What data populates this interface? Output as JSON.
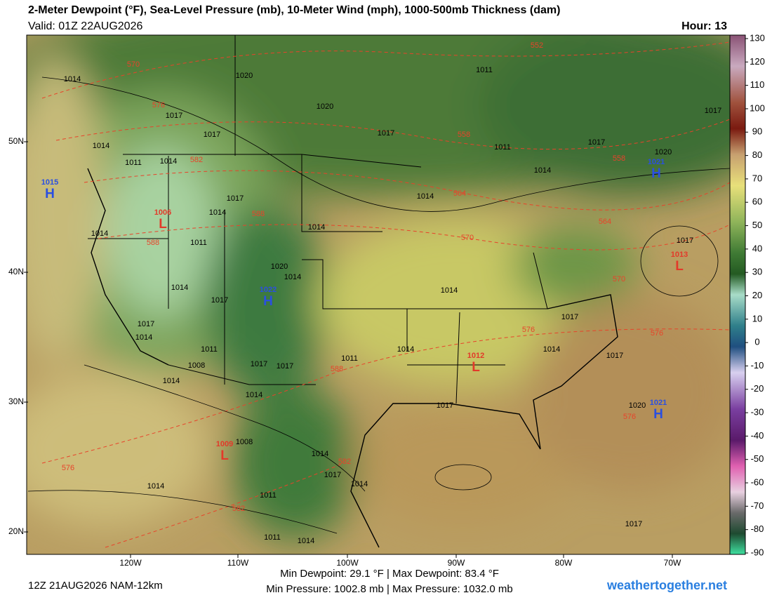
{
  "header": {
    "title": "2-Meter Dewpoint (°F), Sea-Level Pressure (mb), 10-Meter Wind (mph), 1000-500mb Thickness (dam)",
    "valid": "Valid: 01Z 22AUG2026",
    "hour": "Hour: 13"
  },
  "map": {
    "lat_labels": [
      "50N",
      "40N",
      "30N",
      "20N"
    ],
    "lon_labels": [
      "120W",
      "110W",
      "100W",
      "90W",
      "80W",
      "70W"
    ],
    "pressure_centers": [
      {
        "letter": "H",
        "value": 1015
      },
      {
        "letter": "H",
        "value": 1021
      },
      {
        "letter": "H",
        "value": 1022
      },
      {
        "letter": "L",
        "value": 1006
      },
      {
        "letter": "L",
        "value": 1013
      },
      {
        "letter": "L",
        "value": 1012
      },
      {
        "letter": "H",
        "value": 1021
      },
      {
        "letter": "L",
        "value": 1009
      }
    ],
    "isobar_labels": [
      1014,
      1017,
      1017,
      1014,
      1011,
      1014,
      1020,
      1020,
      1017,
      1011,
      1011,
      1014,
      1017,
      1017,
      1020,
      1014,
      1014,
      1017,
      1014,
      1011,
      1014,
      1020,
      1014,
      1014,
      1017,
      1017,
      1014,
      1011,
      1008,
      1014,
      1017,
      1017,
      1014,
      1011,
      1014,
      1014,
      1017,
      1014,
      1017,
      1017,
      1017,
      1020,
      1008,
      1014,
      1017,
      1014,
      1014,
      1011,
      1011,
      1014,
      1017
    ],
    "thickness_labels": [
      570,
      576,
      582,
      588,
      588,
      552,
      558,
      564,
      558,
      570,
      564,
      570,
      576,
      576,
      588,
      582,
      576,
      582,
      576
    ]
  },
  "colorbar": {
    "ticks": [
      130,
      120,
      110,
      100,
      90,
      80,
      70,
      60,
      50,
      40,
      30,
      20,
      10,
      0,
      -10,
      -20,
      -30,
      -40,
      -50,
      -60,
      -70,
      -80,
      -90
    ]
  },
  "footer": {
    "run": "12Z 21AUG2026 NAM-12km",
    "dewpoint": "Min Dewpoint: 29.1 °F | Max Dewpoint: 83.4 °F",
    "pressure": "Min Pressure: 1002.8 mb | Max Pressure: 1032.0 mb",
    "site": "weathertogether.net"
  }
}
